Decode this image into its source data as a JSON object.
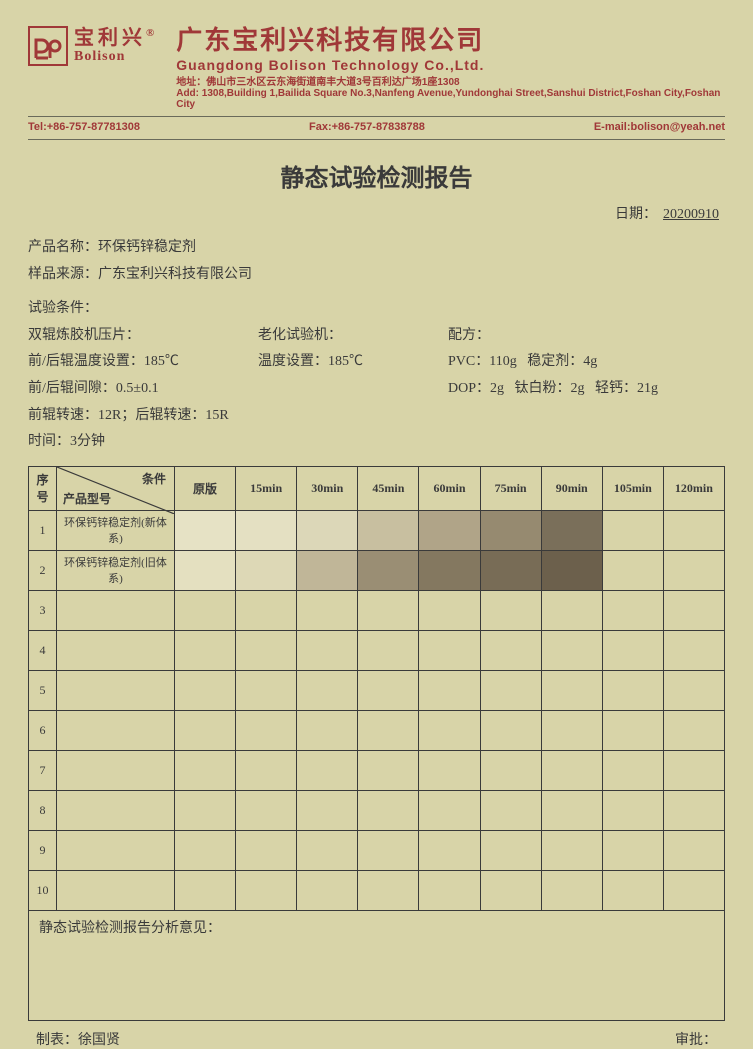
{
  "logo": {
    "cn": "宝利兴",
    "en": "Bolison",
    "reg": "®"
  },
  "company": {
    "cn": "广东宝利兴科技有限公司",
    "en": "Guangdong Bolison Technology Co.,Ltd.",
    "addr_cn": "地址：佛山市三水区云东海街道南丰大道3号百利达广场1座1308",
    "addr_en": "Add: 1308,Building 1,Bailida Square No.3,Nanfeng Avenue,Yundonghai Street,Sanshui District,Foshan City,Foshan City"
  },
  "contact": {
    "tel": "Tel:+86-757-87781308",
    "fax": "Fax:+86-757-87838788",
    "email": "E-mail:bolison@yeah.net"
  },
  "title": "静态试验检测报告",
  "date_label": "日期：",
  "date_value": "20200910",
  "meta": {
    "product_label": "产品名称：",
    "product_value": "环保钙锌稳定剂",
    "source_label": "样品来源：",
    "source_value": "广东宝利兴科技有限公司",
    "cond_label": "试验条件：",
    "roll_label": "双辊炼胶机压片：",
    "temp_label": "前/后辊温度设置：",
    "temp_value": "185℃",
    "gap_label": "前/后辊间隙：",
    "gap_value": "0.5±0.1",
    "speed_label": "前辊转速：12R；后辊转速：15R",
    "time_label": "时间：",
    "time_value": "3分钟",
    "aging_label": "老化试验机：",
    "aging_temp_label": "温度设置：",
    "aging_temp_value": "185℃",
    "formula_label": "配方：",
    "pvc": "PVC：110g",
    "stab": "稳定剂：4g",
    "dop": "DOP：2g",
    "ti": "钛白粉：2g",
    "caco3": "轻钙：21g"
  },
  "table": {
    "diag_top": "条件",
    "diag_bot": "产品型号",
    "idx_header": "序号",
    "columns": [
      "原版",
      "15min",
      "30min",
      "45min",
      "60min",
      "75min",
      "90min",
      "105min",
      "120min"
    ],
    "rows": [
      {
        "idx": "1",
        "name": "环保钙锌稳定剂(新体系)",
        "colors": [
          "#e6e2c5",
          "#e4e0c2",
          "#dcd7b8",
          "#c8bfa0",
          "#b0a488",
          "#968a70",
          "#7a6f5a",
          "",
          ""
        ]
      },
      {
        "idx": "2",
        "name": "环保钙锌稳定剂(旧体系)",
        "colors": [
          "#e4e0c0",
          "#ddd8b6",
          "#c0b698",
          "#9a8e74",
          "#847860",
          "#786c56",
          "#6c604c",
          "",
          ""
        ]
      },
      {
        "idx": "3",
        "name": "",
        "colors": [
          "",
          "",
          "",
          "",
          "",
          "",
          "",
          "",
          ""
        ]
      },
      {
        "idx": "4",
        "name": "",
        "colors": [
          "",
          "",
          "",
          "",
          "",
          "",
          "",
          "",
          ""
        ]
      },
      {
        "idx": "5",
        "name": "",
        "colors": [
          "",
          "",
          "",
          "",
          "",
          "",
          "",
          "",
          ""
        ]
      },
      {
        "idx": "6",
        "name": "",
        "colors": [
          "",
          "",
          "",
          "",
          "",
          "",
          "",
          "",
          ""
        ]
      },
      {
        "idx": "7",
        "name": "",
        "colors": [
          "",
          "",
          "",
          "",
          "",
          "",
          "",
          "",
          ""
        ]
      },
      {
        "idx": "8",
        "name": "",
        "colors": [
          "",
          "",
          "",
          "",
          "",
          "",
          "",
          "",
          ""
        ]
      },
      {
        "idx": "9",
        "name": "",
        "colors": [
          "",
          "",
          "",
          "",
          "",
          "",
          "",
          "",
          ""
        ]
      },
      {
        "idx": "10",
        "name": "",
        "colors": [
          "",
          "",
          "",
          "",
          "",
          "",
          "",
          "",
          ""
        ]
      }
    ],
    "analysis_label": "静态试验检测报告分析意见："
  },
  "footer": {
    "maker_label": "制表：",
    "maker_value": "徐国贤",
    "reviewer_label": "审批："
  }
}
